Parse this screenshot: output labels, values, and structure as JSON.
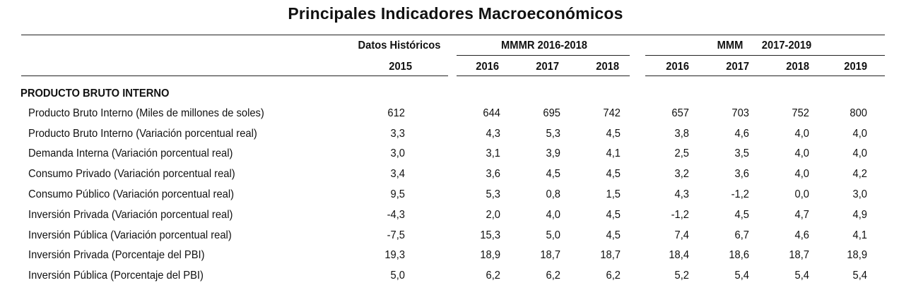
{
  "title": "Principales Indicadores Macroeconómicos",
  "header": {
    "group_historic": "Datos Históricos",
    "group_mmmr": "MMMR 2016-2018",
    "group_mmm_prefix": "MMM",
    "group_mmm_range": "2017-2019",
    "years": [
      "2015",
      "2016",
      "2017",
      "2018",
      "2016",
      "2017",
      "2018",
      "2019"
    ]
  },
  "section_title": "PRODUCTO BRUTO INTERNO",
  "rows": [
    {
      "label": "Producto Bruto Interno (Miles de millones de soles)",
      "values": [
        "612",
        "644",
        "695",
        "742",
        "657",
        "703",
        "752",
        "800"
      ]
    },
    {
      "label": "Producto Bruto Interno (Variación porcentual real)",
      "values": [
        "3,3",
        "4,3",
        "5,3",
        "4,5",
        "3,8",
        "4,6",
        "4,0",
        "4,0"
      ]
    },
    {
      "label": "Demanda Interna (Variación porcentual real)",
      "values": [
        "3,0",
        "3,1",
        "3,9",
        "4,1",
        "2,5",
        "3,5",
        "4,0",
        "4,0"
      ]
    },
    {
      "label": "Consumo Privado (Variación porcentual real)",
      "values": [
        "3,4",
        "3,6",
        "4,5",
        "4,5",
        "3,2",
        "3,6",
        "4,0",
        "4,2"
      ]
    },
    {
      "label": "Consumo Público (Variación porcentual real)",
      "values": [
        "9,5",
        "5,3",
        "0,8",
        "1,5",
        "4,3",
        "-1,2",
        "0,0",
        "3,0"
      ]
    },
    {
      "label": "Inversión Privada (Variación porcentual real)",
      "values": [
        "-4,3",
        "2,0",
        "4,0",
        "4,5",
        "-1,2",
        "4,5",
        "4,7",
        "4,9"
      ]
    },
    {
      "label": "Inversión Pública (Variación porcentual real)",
      "values": [
        "-7,5",
        "15,3",
        "5,0",
        "4,5",
        "7,4",
        "6,7",
        "4,6",
        "4,1"
      ]
    },
    {
      "label": "Inversión Privada (Porcentaje del PBI)",
      "values": [
        "19,3",
        "18,9",
        "18,7",
        "18,7",
        "18,4",
        "18,6",
        "18,7",
        "18,9"
      ]
    },
    {
      "label": "Inversión Pública (Porcentaje del PBI)",
      "values": [
        "5,0",
        "6,2",
        "6,2",
        "6,2",
        "5,2",
        "5,4",
        "5,4",
        "5,4"
      ]
    }
  ]
}
